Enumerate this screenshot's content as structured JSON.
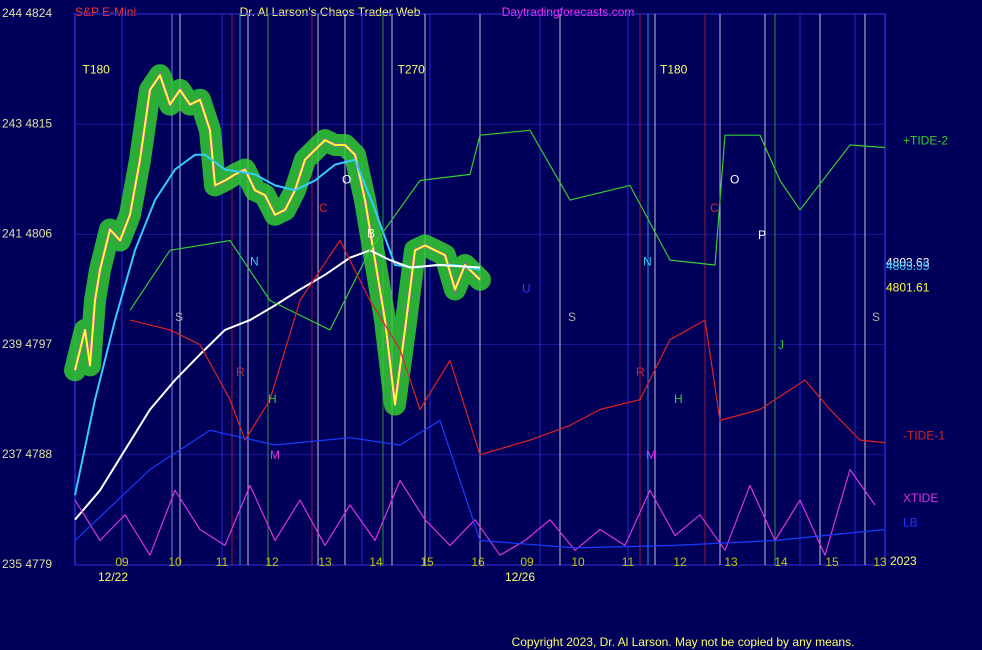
{
  "chart_data": {
    "type": "line",
    "symbol": "S&P E-Mini",
    "title": "Dr. Al Larson's Chaos Trader Web",
    "site": "Daytradingforecasts.com",
    "copyright": "Copyright 2023, Dr. Al Larson. May not be copied by any means.",
    "year": "2023",
    "xlim": [
      0,
      162
    ],
    "ylim": [
      4779,
      4824
    ],
    "yticks": [
      {
        "value": 4824,
        "label": "244  4824"
      },
      {
        "value": 4815,
        "label": "243  4815"
      },
      {
        "value": 4806,
        "label": "241  4806"
      },
      {
        "value": 4797,
        "label": "239  4797"
      },
      {
        "value": 4788,
        "label": "237  4788"
      },
      {
        "value": 4779,
        "label": "235  4779"
      }
    ],
    "xticks": [
      {
        "value": 9.4,
        "label": "09"
      },
      {
        "value": 20,
        "label": "10"
      },
      {
        "value": 29.4,
        "label": "11"
      },
      {
        "value": 39.4,
        "label": "12"
      },
      {
        "value": 50,
        "label": "13"
      },
      {
        "value": 60.2,
        "label": "14"
      },
      {
        "value": 70.4,
        "label": "15"
      },
      {
        "value": 80.6,
        "label": "16"
      },
      {
        "value": 90.4,
        "label": "09"
      },
      {
        "value": 100.6,
        "label": "10"
      },
      {
        "value": 110.6,
        "label": "11"
      },
      {
        "value": 121,
        "label": "12"
      },
      {
        "value": 131.2,
        "label": "13"
      },
      {
        "value": 141.2,
        "label": "14"
      },
      {
        "value": 151.4,
        "label": "15"
      },
      {
        "value": 161,
        "label": "13"
      }
    ],
    "dates": [
      {
        "text": "12/22",
        "x": 7.6
      },
      {
        "text": "12/26",
        "x": 89
      }
    ],
    "grid": true,
    "series": [
      {
        "color": "#ffff33",
        "x": [
          0,
          2,
          3,
          4,
          5,
          7,
          9,
          11,
          13,
          15,
          17,
          19,
          21,
          23,
          25,
          27,
          28,
          30,
          32,
          34,
          36,
          38,
          40,
          42,
          44,
          46,
          48,
          50,
          52,
          54,
          56,
          58,
          60,
          62,
          64,
          66,
          68,
          70,
          72,
          74,
          76,
          78,
          80,
          81
        ],
        "values": [
          4794.9,
          4798.2,
          4795.3,
          4800.6,
          4803.1,
          4806.4,
          4805.5,
          4807.6,
          4812.1,
          4817.8,
          4819.0,
          4816.6,
          4817.8,
          4816.6,
          4817.0,
          4814.5,
          4810.0,
          4810.4,
          4810.9,
          4811.3,
          4809.6,
          4809.2,
          4807.6,
          4808.0,
          4809.6,
          4812.1,
          4812.9,
          4813.7,
          4813.3,
          4813.3,
          4812.5,
          4808.8,
          4803.9,
          4799.0,
          4792.1,
          4798.2,
          4804.7,
          4805.1,
          4804.7,
          4804.3,
          4801.5,
          4803.5,
          4802.7,
          4802.3
        ]
      },
      {
        "color": "#33ccff",
        "x": [
          0,
          4,
          8,
          12,
          16,
          20,
          24,
          26,
          30,
          36,
          40,
          44,
          48,
          52,
          56,
          60,
          64,
          68,
          72,
          76,
          81
        ],
        "values": [
          4784.7,
          4792.5,
          4799.0,
          4804.7,
          4808.8,
          4811.3,
          4812.5,
          4812.5,
          4811.3,
          4810.9,
          4810.0,
          4809.6,
          4810.4,
          4811.7,
          4812.1,
          4808.0,
          4803.5,
          4803.3,
          4803.5,
          4803.5,
          4803.1
        ]
      },
      {
        "color": "#ffffff",
        "x": [
          0,
          5,
          10,
          15,
          20,
          25,
          30,
          35,
          40,
          45,
          50,
          55,
          59,
          63,
          67,
          73,
          81
        ],
        "values": [
          4782.7,
          4785.1,
          4788.4,
          4791.7,
          4794.1,
          4796.2,
          4798.2,
          4799.0,
          4800.2,
          4801.5,
          4802.7,
          4804.1,
          4804.7,
          4803.9,
          4803.3,
          4803.5,
          4803.3
        ]
      },
      {
        "name": "+TIDE-2",
        "color": "#33cc33",
        "x": [
          11,
          19,
          31,
          39,
          51,
          59,
          69,
          79,
          81,
          91,
          99,
          111,
          119,
          128,
          130,
          137,
          141,
          145,
          155,
          162
        ],
        "values": [
          4799.8,
          4804.7,
          4805.5,
          4800.6,
          4798.2,
          4804.7,
          4810.4,
          4810.9,
          4814.1,
          4814.5,
          4808.8,
          4810.0,
          4803.9,
          4803.5,
          4814.1,
          4814.1,
          4810.4,
          4808.0,
          4813.3,
          4813.1
        ]
      },
      {
        "name": "-TIDE-1",
        "color": "#dd2222",
        "x": [
          11,
          19,
          25,
          31,
          34,
          39,
          45,
          53,
          59,
          65,
          69,
          75,
          81,
          91,
          99,
          105,
          113,
          119,
          126,
          129,
          137,
          146,
          151,
          157,
          162
        ],
        "values": [
          4799.0,
          4798.2,
          4797.0,
          4792.5,
          4789.2,
          4792.5,
          4800.6,
          4805.5,
          4800.6,
          4796.6,
          4791.7,
          4795.7,
          4788.0,
          4789.2,
          4790.4,
          4791.7,
          4792.5,
          4797.4,
          4799.0,
          4790.8,
          4791.7,
          4794.1,
          4791.7,
          4789.2,
          4789.0
        ]
      },
      {
        "name": "XTIDE",
        "color": "#dd33dd",
        "x": [
          0,
          5,
          10,
          15,
          20,
          25,
          30,
          35,
          40,
          45,
          50,
          55,
          60,
          65,
          70,
          75,
          80,
          85,
          90,
          95,
          100,
          105,
          110,
          115,
          120,
          125,
          130,
          135,
          140,
          145,
          150,
          155,
          160
        ],
        "values": [
          4784.3,
          4781.0,
          4783.1,
          4779.8,
          4785.1,
          4781.9,
          4780.6,
          4785.5,
          4781.0,
          4784.3,
          4780.6,
          4783.9,
          4781.0,
          4785.9,
          4782.7,
          4780.6,
          4782.7,
          4779.8,
          4781.0,
          4782.7,
          4780.2,
          4781.9,
          4780.6,
          4785.1,
          4781.4,
          4783.1,
          4780.2,
          4785.5,
          4781.0,
          4784.3,
          4779.8,
          4786.8,
          4783.9
        ]
      },
      {
        "name": "LB",
        "color": "#1a3cff",
        "x": [
          0,
          15,
          27,
          40,
          55,
          65,
          73,
          81,
          100,
          120,
          140,
          162
        ],
        "values": [
          4781.0,
          4786.8,
          4790.0,
          4788.8,
          4789.4,
          4788.8,
          4790.8,
          4781.0,
          4780.4,
          4780.6,
          4781.0,
          4781.9
        ]
      }
    ],
    "end_labels": [
      {
        "value": 4803.63,
        "color": "#ffffff"
      },
      {
        "value": 4803.35,
        "color": "#33ccff"
      },
      {
        "value": 4801.61,
        "color": "#ffff33"
      }
    ],
    "vlines": [
      {
        "x": 9.4,
        "color": "#3333ff"
      },
      {
        "x": 19.4,
        "color": "#aaaaff"
      },
      {
        "x": 21,
        "color": "#ffffff"
      },
      {
        "x": 29.4,
        "color": "#3333ff"
      },
      {
        "x": 31.4,
        "color": "#cc2222"
      },
      {
        "x": 33,
        "color": "#33ccff"
      },
      {
        "x": 34.6,
        "color": "#ffffff"
      },
      {
        "x": 38.6,
        "color": "#33cc33"
      },
      {
        "x": 47.4,
        "color": "#cc2222"
      },
      {
        "x": 48.6,
        "color": "#ffffff"
      },
      {
        "x": 54,
        "color": "#ffffff"
      },
      {
        "x": 57.4,
        "color": "#3333ff"
      },
      {
        "x": 61.6,
        "color": "#33cc33"
      },
      {
        "x": 63.4,
        "color": "#ffffff"
      },
      {
        "x": 70,
        "color": "#ffffff"
      },
      {
        "x": 71,
        "color": "#3333ff"
      },
      {
        "x": 81,
        "color": "#ffffff"
      },
      {
        "x": 93,
        "color": "#3333ff"
      },
      {
        "x": 97,
        "color": "#ffffff"
      },
      {
        "x": 110.6,
        "color": "#3333ff"
      },
      {
        "x": 113,
        "color": "#cc2222"
      },
      {
        "x": 114.6,
        "color": "#33ccff"
      },
      {
        "x": 116,
        "color": "#ffffff"
      },
      {
        "x": 126,
        "color": "#cc2222"
      },
      {
        "x": 129,
        "color": "#ffffff"
      },
      {
        "x": 138,
        "color": "#ffffff"
      },
      {
        "x": 140,
        "color": "#33cc33"
      },
      {
        "x": 145,
        "color": "#3333ff"
      },
      {
        "x": 149,
        "color": "#ffffff"
      },
      {
        "x": 156,
        "color": "#3333ff"
      },
      {
        "x": 158,
        "color": "#ffffff"
      }
    ],
    "annotations": [
      {
        "text": "T180",
        "x": 1.5,
        "y": 4819.4,
        "color": "#ffff66"
      },
      {
        "text": "T270",
        "x": 64.5,
        "y": 4819.4,
        "color": "#ffff66"
      },
      {
        "text": "T180",
        "x": 117,
        "y": 4819.4,
        "color": "#ffff66"
      },
      {
        "text": "N",
        "x": 35,
        "y": 4803.7,
        "color": "#33ccff"
      },
      {
        "text": "N",
        "x": 113.6,
        "y": 4803.7,
        "color": "#33ccff"
      },
      {
        "text": "S",
        "x": 20,
        "y": 4799.2,
        "color": "#aaaaaa"
      },
      {
        "text": "S",
        "x": 98.6,
        "y": 4799.2,
        "color": "#aaaaaa"
      },
      {
        "text": "S",
        "x": 159.4,
        "y": 4799.2,
        "color": "#aaaaaa"
      },
      {
        "text": "U",
        "x": 89.4,
        "y": 4801.5,
        "color": "#3333ff"
      },
      {
        "text": "R",
        "x": 32.2,
        "y": 4794.7,
        "color": "#dd2222"
      },
      {
        "text": "R",
        "x": 112.2,
        "y": 4794.7,
        "color": "#dd2222"
      },
      {
        "text": "H",
        "x": 38.6,
        "y": 4792.5,
        "color": "#33cc33"
      },
      {
        "text": "H",
        "x": 119.8,
        "y": 4792.5,
        "color": "#33cc33"
      },
      {
        "text": "M",
        "x": 39,
        "y": 4787.9,
        "color": "#dd33dd"
      },
      {
        "text": "M",
        "x": 114.2,
        "y": 4787.9,
        "color": "#dd33dd"
      },
      {
        "text": "C",
        "x": 48.8,
        "y": 4808.1,
        "color": "#dd2222"
      },
      {
        "text": "C",
        "x": 127,
        "y": 4808.1,
        "color": "#dd2222"
      },
      {
        "text": "O",
        "x": 53.4,
        "y": 4810.4,
        "color": "#ffffff"
      },
      {
        "text": "O",
        "x": 131,
        "y": 4810.4,
        "color": "#ffffff"
      },
      {
        "text": "P",
        "x": 136.6,
        "y": 4805.9,
        "color": "#ffffff"
      },
      {
        "text": "J",
        "x": 140.6,
        "y": 4796.9,
        "color": "#33cc33"
      },
      {
        "text": "B",
        "x": 58.4,
        "y": 4806.0,
        "color": "#ffffff"
      }
    ]
  }
}
